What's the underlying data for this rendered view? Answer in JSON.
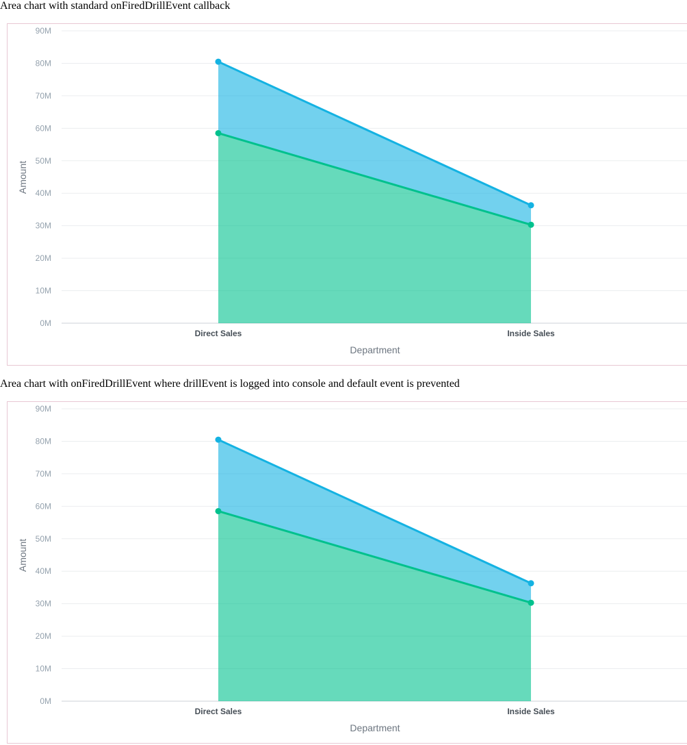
{
  "sections": [
    {
      "title": "Area chart with standard onFiredDrillEvent callback"
    },
    {
      "title": "Area chart with onFiredDrillEvent where drillEvent is logged into console and default event is prevented"
    }
  ],
  "chart_data": [
    {
      "type": "area",
      "stacked": true,
      "categories": [
        "Direct Sales",
        "Inside Sales"
      ],
      "series": [
        {
          "values": [
            22000000,
            6000000
          ],
          "color": "#14b2e2"
        },
        {
          "values": [
            58500000,
            30300000
          ],
          "color": "#00c18d"
        }
      ],
      "xlabel": "Department",
      "ylabel": "Amount",
      "ylim": [
        0,
        90000000
      ],
      "yticks": [
        "0M",
        "10M",
        "20M",
        "30M",
        "40M",
        "50M",
        "60M",
        "70M",
        "80M",
        "90M"
      ],
      "grid": true,
      "legend": "none"
    },
    {
      "type": "area",
      "stacked": true,
      "categories": [
        "Direct Sales",
        "Inside Sales"
      ],
      "series": [
        {
          "values": [
            22000000,
            6000000
          ],
          "color": "#14b2e2"
        },
        {
          "values": [
            58500000,
            30300000
          ],
          "color": "#00c18d"
        }
      ],
      "xlabel": "Department",
      "ylabel": "Amount",
      "ylim": [
        0,
        90000000
      ],
      "yticks": [
        "0M",
        "10M",
        "20M",
        "30M",
        "40M",
        "50M",
        "60M",
        "70M",
        "80M",
        "90M"
      ],
      "grid": true,
      "legend": "none"
    }
  ]
}
